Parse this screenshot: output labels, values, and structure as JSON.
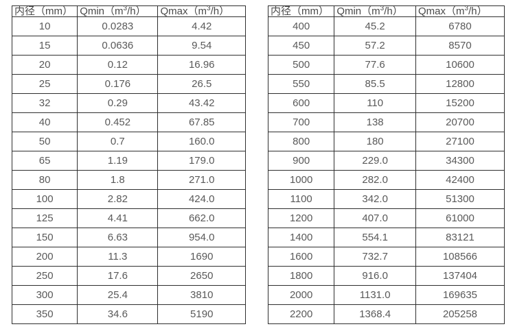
{
  "colors": {
    "background": "#ffffff",
    "border": "#2e2e2e",
    "header_text": "#4a4a4a",
    "cell_text": "#595959"
  },
  "chart_data": [
    {
      "type": "table",
      "title": "",
      "columns": [
        "内径（mm）",
        "Qmin（m³/h）",
        "Qmax（m³/h）"
      ],
      "rows": [
        [
          "10",
          "0.0283",
          "4.42"
        ],
        [
          "15",
          "0.0636",
          "9.54"
        ],
        [
          "20",
          "0.12",
          "16.96"
        ],
        [
          "25",
          "0.176",
          "26.5"
        ],
        [
          "32",
          "0.29",
          "43.42"
        ],
        [
          "40",
          "0.452",
          "67.85"
        ],
        [
          "50",
          "0.7",
          "160.0"
        ],
        [
          "65",
          "1.19",
          "179.0"
        ],
        [
          "80",
          "1.8",
          "271.0"
        ],
        [
          "100",
          "2.82",
          "424.0"
        ],
        [
          "125",
          "4.41",
          "662.0"
        ],
        [
          "150",
          "6.63",
          "954.0"
        ],
        [
          "200",
          "11.3",
          "1690"
        ],
        [
          "250",
          "17.6",
          "2650"
        ],
        [
          "300",
          "25.4",
          "3810"
        ],
        [
          "350",
          "34.6",
          "5190"
        ]
      ]
    },
    {
      "type": "table",
      "title": "",
      "columns": [
        "内径（mm）",
        "Qmin（m³/h）",
        "Qmax（m³/h）"
      ],
      "rows": [
        [
          "400",
          "45.2",
          "6780"
        ],
        [
          "450",
          "57.2",
          "8570"
        ],
        [
          "500",
          "77.6",
          "10600"
        ],
        [
          "550",
          "85.5",
          "12800"
        ],
        [
          "600",
          "110",
          "15200"
        ],
        [
          "700",
          "138",
          "20700"
        ],
        [
          "800",
          "180",
          "27100"
        ],
        [
          "900",
          "229.0",
          "34300"
        ],
        [
          "1000",
          "282.0",
          "42400"
        ],
        [
          "1100",
          "342.0",
          "51300"
        ],
        [
          "1200",
          "407.0",
          "61000"
        ],
        [
          "1400",
          "554.1",
          "83121"
        ],
        [
          "1600",
          "732.7",
          "108566"
        ],
        [
          "1800",
          "916.0",
          "137404"
        ],
        [
          "2000",
          "1131.0",
          "169635"
        ],
        [
          "2200",
          "1368.4",
          "205258"
        ]
      ]
    }
  ]
}
